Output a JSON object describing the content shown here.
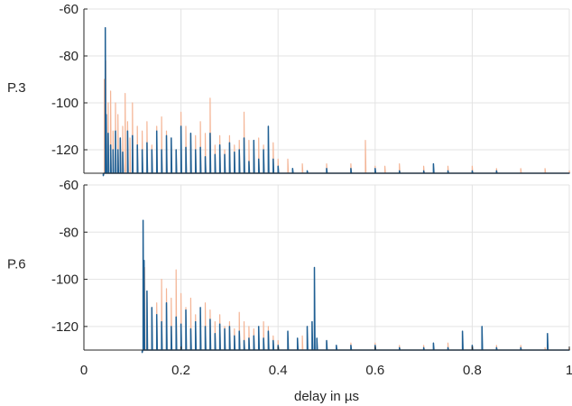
{
  "chart_data": [
    {
      "type": "line",
      "ylabel": "P.3",
      "xlim": [
        0,
        1
      ],
      "ylim": [
        -130,
        -60
      ],
      "yticks": [
        -60,
        -80,
        -100,
        -120
      ],
      "grid": true,
      "series": [
        {
          "color": "#f4b596",
          "x": [
            0.04,
            0.042,
            0.045,
            0.05,
            0.055,
            0.06,
            0.065,
            0.07,
            0.075,
            0.08,
            0.085,
            0.09,
            0.095,
            0.1,
            0.11,
            0.12,
            0.13,
            0.14,
            0.15,
            0.16,
            0.17,
            0.18,
            0.19,
            0.2,
            0.21,
            0.22,
            0.23,
            0.24,
            0.25,
            0.26,
            0.27,
            0.28,
            0.29,
            0.3,
            0.31,
            0.32,
            0.33,
            0.34,
            0.35,
            0.36,
            0.37,
            0.38,
            0.39,
            0.4,
            0.42,
            0.45,
            0.5,
            0.55,
            0.58,
            0.6,
            0.62,
            0.65,
            0.7,
            0.75,
            0.8,
            0.85,
            0.9,
            0.95,
            1.0
          ],
          "y": [
            -131,
            -90,
            -82,
            -100,
            -95,
            -112,
            -100,
            -105,
            -118,
            -110,
            -96,
            -108,
            -115,
            -100,
            -110,
            -112,
            -108,
            -118,
            -110,
            -106,
            -112,
            -115,
            -120,
            -104,
            -110,
            -116,
            -114,
            -108,
            -113,
            -98,
            -118,
            -114,
            -120,
            -114,
            -118,
            -116,
            -104,
            -116,
            -118,
            -115,
            -118,
            -122,
            -117,
            -124,
            -124,
            -126,
            -126,
            -126,
            -116,
            -127,
            -127,
            -126,
            -127,
            -127,
            -127,
            -128,
            -128,
            -128,
            -129
          ]
        },
        {
          "color": "#1f5f93",
          "x": [
            0.04,
            0.044,
            0.046,
            0.05,
            0.055,
            0.06,
            0.065,
            0.07,
            0.075,
            0.08,
            0.09,
            0.1,
            0.11,
            0.12,
            0.13,
            0.14,
            0.15,
            0.16,
            0.17,
            0.18,
            0.19,
            0.2,
            0.21,
            0.22,
            0.23,
            0.24,
            0.25,
            0.26,
            0.27,
            0.28,
            0.29,
            0.3,
            0.31,
            0.32,
            0.33,
            0.34,
            0.35,
            0.36,
            0.37,
            0.38,
            0.39,
            0.4,
            0.43,
            0.46,
            0.5,
            0.55,
            0.6,
            0.65,
            0.7,
            0.72,
            0.75,
            0.8,
            0.85,
            0.9,
            0.95,
            1.0
          ],
          "y": [
            -131,
            -68,
            -105,
            -113,
            -118,
            -120,
            -112,
            -120,
            -115,
            -121,
            -112,
            -114,
            -118,
            -120,
            -117,
            -120,
            -112,
            -120,
            -114,
            -115,
            -120,
            -110,
            -119,
            -113,
            -120,
            -119,
            -123,
            -113,
            -122,
            -118,
            -122,
            -117,
            -121,
            -120,
            -115,
            -125,
            -116,
            -124,
            -120,
            -110,
            -124,
            -127,
            -128,
            -129,
            -128,
            -128,
            -128,
            -129,
            -129,
            -126,
            -129,
            -129,
            -129,
            -130,
            -130,
            -130
          ]
        }
      ]
    },
    {
      "type": "line",
      "ylabel": "P.6",
      "xlabel": "delay in µs",
      "xlim": [
        0,
        1
      ],
      "ylim": [
        -130,
        -60
      ],
      "xticks": [
        0,
        0.2,
        0.4,
        0.6,
        0.8,
        1
      ],
      "xticklabels": [
        "0",
        "0.2",
        "0.4",
        "0.6",
        "0.8",
        "1"
      ],
      "yticks": [
        -60,
        -80,
        -100,
        -120
      ],
      "grid": true,
      "series": [
        {
          "color": "#f4b596",
          "x": [
            0.12,
            0.125,
            0.13,
            0.14,
            0.15,
            0.16,
            0.17,
            0.18,
            0.19,
            0.2,
            0.21,
            0.22,
            0.23,
            0.24,
            0.25,
            0.26,
            0.27,
            0.28,
            0.29,
            0.3,
            0.31,
            0.32,
            0.33,
            0.34,
            0.35,
            0.36,
            0.37,
            0.38,
            0.39,
            0.4,
            0.42,
            0.45,
            0.48,
            0.5,
            0.55,
            0.6,
            0.65,
            0.7,
            0.75,
            0.8,
            0.85,
            0.9,
            0.95,
            1.0
          ],
          "y": [
            -131,
            -95,
            -105,
            -112,
            -110,
            -100,
            -104,
            -108,
            -96,
            -106,
            -112,
            -108,
            -115,
            -117,
            -110,
            -113,
            -118,
            -115,
            -120,
            -118,
            -121,
            -114,
            -118,
            -120,
            -121,
            -122,
            -118,
            -120,
            -124,
            -126,
            -125,
            -124,
            -127,
            -126,
            -127,
            -127,
            -128,
            -128,
            -127,
            -128,
            -128,
            -128,
            -129,
            -129
          ]
        },
        {
          "color": "#1f5f93",
          "x": [
            0.12,
            0.122,
            0.124,
            0.13,
            0.14,
            0.15,
            0.16,
            0.17,
            0.18,
            0.19,
            0.2,
            0.21,
            0.22,
            0.23,
            0.24,
            0.25,
            0.26,
            0.27,
            0.28,
            0.29,
            0.3,
            0.31,
            0.32,
            0.33,
            0.34,
            0.35,
            0.36,
            0.37,
            0.38,
            0.39,
            0.4,
            0.42,
            0.44,
            0.46,
            0.47,
            0.475,
            0.48,
            0.5,
            0.52,
            0.55,
            0.6,
            0.65,
            0.7,
            0.72,
            0.75,
            0.78,
            0.8,
            0.82,
            0.85,
            0.9,
            0.955,
            0.97,
            1.0
          ],
          "y": [
            -131,
            -75,
            -92,
            -105,
            -112,
            -115,
            -118,
            -110,
            -120,
            -116,
            -119,
            -113,
            -121,
            -118,
            -112,
            -120,
            -117,
            -123,
            -119,
            -121,
            -120,
            -124,
            -122,
            -126,
            -125,
            -124,
            -120,
            -125,
            -122,
            -126,
            -128,
            -122,
            -125,
            -120,
            -118,
            -95,
            -125,
            -126,
            -128,
            -128,
            -128,
            -129,
            -129,
            -127,
            -129,
            -122,
            -128,
            -120,
            -129,
            -129,
            -123,
            -130,
            -130
          ]
        }
      ]
    }
  ]
}
